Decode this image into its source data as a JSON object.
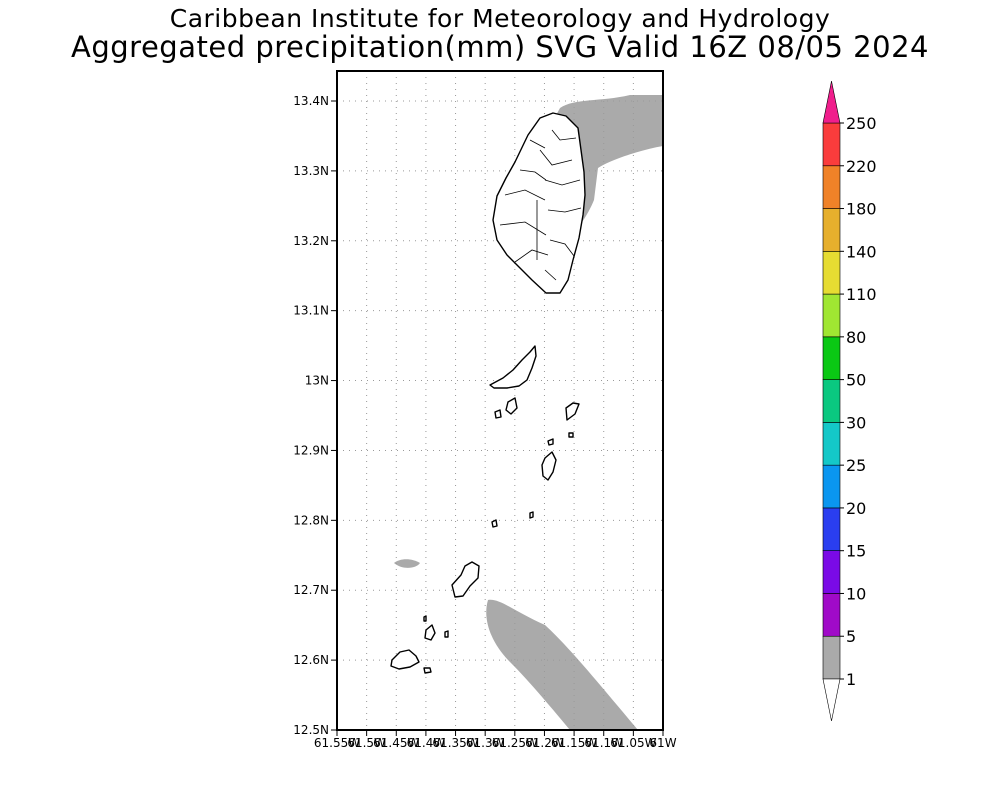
{
  "title": {
    "line1": "Caribbean Institute for Meteorology and Hydrology",
    "line2": "Aggregated precipitation(mm) SVG Valid 16Z 08/05 2024"
  },
  "map": {
    "lon_range": [
      -61.55,
      -61.0
    ],
    "lat_range": [
      12.5,
      13.45
    ],
    "lat_ticks": [
      {
        "value": 12.5,
        "label": "12.5N"
      },
      {
        "value": 12.6,
        "label": "12.6N"
      },
      {
        "value": 12.7,
        "label": "12.7N"
      },
      {
        "value": 12.8,
        "label": "12.8N"
      },
      {
        "value": 12.9,
        "label": "12.9N"
      },
      {
        "value": 13.0,
        "label": "13N"
      },
      {
        "value": 13.1,
        "label": "13.1N"
      },
      {
        "value": 13.2,
        "label": "13.2N"
      },
      {
        "value": 13.3,
        "label": "13.3N"
      },
      {
        "value": 13.4,
        "label": "13.4N"
      }
    ],
    "lon_ticks": [
      {
        "value": -61.55,
        "label": "61.55W"
      },
      {
        "value": -61.5,
        "label": "61.5W"
      },
      {
        "value": -61.45,
        "label": "61.45W"
      },
      {
        "value": -61.4,
        "label": "61.4W"
      },
      {
        "value": -61.35,
        "label": "61.35W"
      },
      {
        "value": -61.3,
        "label": "61.3W"
      },
      {
        "value": -61.25,
        "label": "61.25W"
      },
      {
        "value": -61.2,
        "label": "61.2W"
      },
      {
        "value": -61.15,
        "label": "61.15W"
      },
      {
        "value": -61.1,
        "label": "61.1W"
      },
      {
        "value": -61.05,
        "label": "61.05W"
      },
      {
        "value": -61.0,
        "label": "61W"
      }
    ],
    "grid": true,
    "land_color": "#ffffff",
    "outline_color": "#000000",
    "precip_shade_color": "#aaaaaa",
    "precip_shade_class": "1-5 mm"
  },
  "colorbar": {
    "labels": [
      "1",
      "5",
      "10",
      "15",
      "20",
      "25",
      "30",
      "50",
      "80",
      "110",
      "140",
      "180",
      "220",
      "250"
    ],
    "colors": [
      "#aaaaaa",
      "#a00ac8",
      "#7a0ae6",
      "#2a3ef0",
      "#0a96f0",
      "#14c8c8",
      "#0ac880",
      "#0ac814",
      "#a0e632",
      "#e6dc32",
      "#e6af2d",
      "#f08228",
      "#fa3c3c",
      "#f01e8c"
    ],
    "under_color": "#ffffff",
    "over_color": "#f01e8c",
    "placement": "right"
  }
}
